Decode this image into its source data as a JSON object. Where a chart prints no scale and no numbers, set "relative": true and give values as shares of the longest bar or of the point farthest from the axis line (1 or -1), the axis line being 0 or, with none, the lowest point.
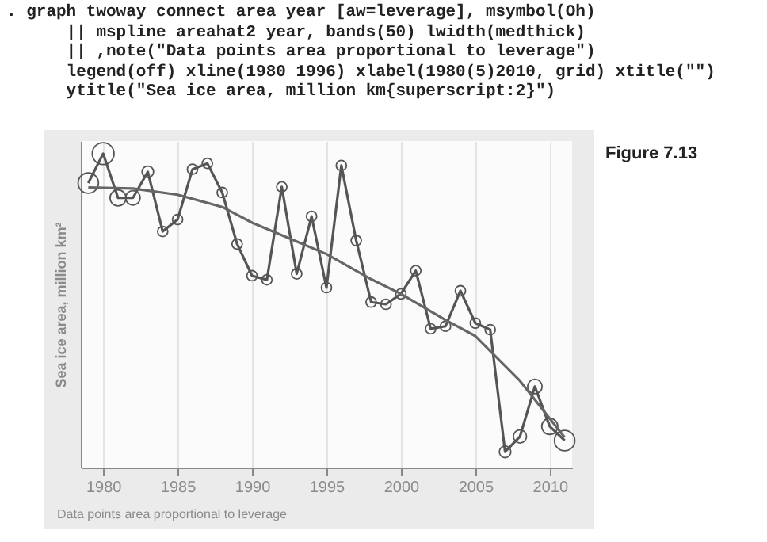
{
  "chart_data": {
    "type": "line",
    "ylabel": "Sea ice area, million km²",
    "annotations": [
      ". graph twoway connect area year [aw=leverage], msymbol(Oh)",
      "|| mspline areahat2 year, bands(50) lwidth(medthick)",
      "|| ,note(\"Data points area proportional to leverage\")",
      "legend(off) xline(1980 1996) xlabel(1980(5)2010, grid) xtitle(\"\")",
      "ytitle(\"Sea ice area, million km{superscript:2}\")",
      "Figure 7.13",
      "Data points area proportional to leverage"
    ],
    "x": [
      1979,
      1980,
      1981,
      1982,
      1983,
      1984,
      1985,
      1986,
      1987,
      1988,
      1989,
      1990,
      1991,
      1992,
      1993,
      1994,
      1995,
      1996,
      1997,
      1998,
      1999,
      2000,
      2001,
      2002,
      2003,
      2004,
      2005,
      2006,
      2007,
      2008,
      2009,
      2010,
      2011
    ],
    "xlim": [
      1978.5,
      2011.5
    ],
    "xticks": [
      1980,
      1985,
      1990,
      1995,
      2000,
      2005,
      2010
    ],
    "relative": true,
    "grid": "x",
    "series": [
      {
        "color": "#555555",
        "marker": "none",
        "values": [
          0.906,
          1,
          0.859,
          0.859,
          0.942,
          0.752,
          0.79,
          0.95,
          0.969,
          0.876,
          0.712,
          0.611,
          0.598,
          0.894,
          0.617,
          0.8,
          0.573,
          0.962,
          0.723,
          0.527,
          0.52,
          0.553,
          0.627,
          0.442,
          0.45,
          0.563,
          0.46,
          0.439,
          0.05,
          0.099,
          0.258,
          0.131,
          0.086
        ]
      },
      {
        "type": "bubble",
        "color": "#555555",
        "marker": "circle",
        "sizes": [
          0.87,
          1,
          0.54,
          0.44,
          0.28,
          0.22,
          0.22,
          0.22,
          0.22,
          0.22,
          0.22,
          0.22,
          0.22,
          0.22,
          0.22,
          0.22,
          0.22,
          0.22,
          0.22,
          0.22,
          0.22,
          0.22,
          0.22,
          0.22,
          0.22,
          0.22,
          0.22,
          0.22,
          0.28,
          0.36,
          0.44,
          0.54,
          0.87
        ],
        "values": [
          0.906,
          1,
          0.859,
          0.859,
          0.942,
          0.752,
          0.79,
          0.95,
          0.969,
          0.876,
          0.712,
          0.611,
          0.598,
          0.894,
          0.617,
          0.8,
          0.573,
          0.962,
          0.723,
          0.527,
          0.52,
          0.553,
          0.627,
          0.442,
          0.45,
          0.563,
          0.46,
          0.439,
          0.05,
          0.099,
          0.258,
          0.131,
          0.086
        ]
      },
      {
        "type": "line",
        "color": "#666666",
        "marker": "none",
        "x": [
          1979,
          1982,
          1985,
          1988,
          1990,
          1993,
          1995,
          1998,
          2000,
          2003,
          2005,
          2008,
          2011
        ],
        "values": [
          0.892,
          0.889,
          0.869,
          0.83,
          0.78,
          0.72,
          0.68,
          0.6,
          0.553,
          0.47,
          0.419,
          0.276,
          0.096
        ]
      }
    ]
  }
}
